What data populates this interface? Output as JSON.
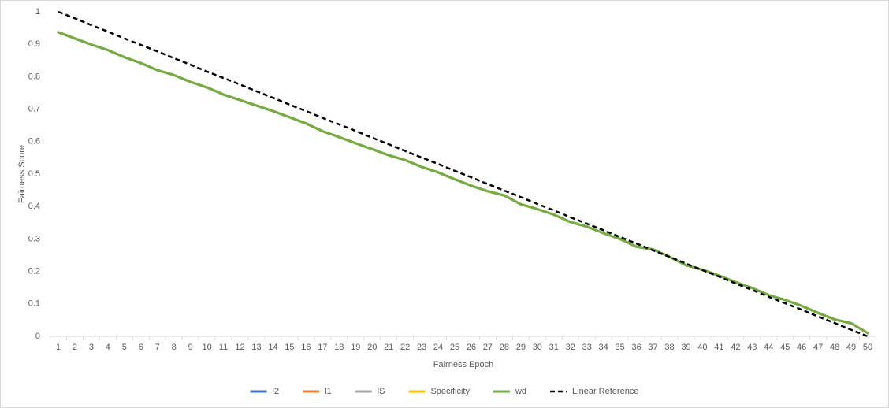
{
  "chart_data": {
    "type": "line",
    "xlabel": "Fairness Epoch",
    "ylabel": "Fairness Score",
    "categories": [
      "1",
      "2",
      "3",
      "4",
      "5",
      "6",
      "7",
      "8",
      "9",
      "10",
      "11",
      "12",
      "13",
      "14",
      "15",
      "16",
      "17",
      "18",
      "19",
      "20",
      "21",
      "22",
      "23",
      "24",
      "25",
      "26",
      "27",
      "28",
      "29",
      "30",
      "31",
      "32",
      "33",
      "34",
      "35",
      "36",
      "37",
      "38",
      "39",
      "40",
      "41",
      "42",
      "43",
      "44",
      "45",
      "46",
      "47",
      "48",
      "49",
      "50"
    ],
    "ylim": [
      0,
      1
    ],
    "yticks": [
      0,
      0.1,
      0.2,
      0.3,
      0.4,
      0.5,
      0.6,
      0.7,
      0.8,
      0.9,
      1
    ],
    "grid": false,
    "legend": "bottom",
    "series": [
      {
        "name": "l2",
        "color": "#4472c4",
        "dashed": false,
        "values": [
          0.937,
          0.918,
          0.899,
          0.882,
          0.86,
          0.842,
          0.82,
          0.805,
          0.784,
          0.767,
          0.745,
          0.728,
          0.711,
          0.694,
          0.675,
          0.656,
          0.632,
          0.614,
          0.595,
          0.577,
          0.558,
          0.543,
          0.522,
          0.505,
          0.484,
          0.464,
          0.447,
          0.434,
          0.407,
          0.392,
          0.375,
          0.352,
          0.338,
          0.318,
          0.3,
          0.276,
          0.268,
          0.245,
          0.219,
          0.205,
          0.187,
          0.167,
          0.149,
          0.127,
          0.112,
          0.094,
          0.072,
          0.052,
          0.04,
          0.01
        ]
      },
      {
        "name": "l1",
        "color": "#ed7d31",
        "dashed": false,
        "values": [
          0.937,
          0.918,
          0.899,
          0.882,
          0.86,
          0.842,
          0.82,
          0.805,
          0.784,
          0.767,
          0.745,
          0.728,
          0.711,
          0.694,
          0.675,
          0.656,
          0.632,
          0.614,
          0.595,
          0.577,
          0.558,
          0.543,
          0.522,
          0.505,
          0.484,
          0.464,
          0.447,
          0.434,
          0.407,
          0.392,
          0.375,
          0.352,
          0.338,
          0.318,
          0.3,
          0.276,
          0.268,
          0.245,
          0.219,
          0.205,
          0.187,
          0.167,
          0.149,
          0.127,
          0.112,
          0.094,
          0.072,
          0.052,
          0.04,
          0.01
        ]
      },
      {
        "name": "lS",
        "color": "#a5a5a5",
        "dashed": false,
        "values": [
          0.937,
          0.918,
          0.899,
          0.882,
          0.86,
          0.842,
          0.82,
          0.805,
          0.784,
          0.767,
          0.745,
          0.728,
          0.711,
          0.694,
          0.675,
          0.656,
          0.632,
          0.614,
          0.595,
          0.577,
          0.558,
          0.543,
          0.522,
          0.505,
          0.484,
          0.464,
          0.447,
          0.434,
          0.407,
          0.392,
          0.375,
          0.352,
          0.338,
          0.318,
          0.3,
          0.276,
          0.268,
          0.245,
          0.219,
          0.205,
          0.187,
          0.167,
          0.149,
          0.127,
          0.112,
          0.094,
          0.072,
          0.052,
          0.04,
          0.01
        ]
      },
      {
        "name": "Specificity",
        "color": "#ffc000",
        "dashed": false,
        "values": [
          0.937,
          0.918,
          0.899,
          0.882,
          0.86,
          0.842,
          0.82,
          0.805,
          0.784,
          0.767,
          0.745,
          0.728,
          0.711,
          0.694,
          0.675,
          0.656,
          0.632,
          0.614,
          0.595,
          0.577,
          0.558,
          0.543,
          0.522,
          0.505,
          0.484,
          0.464,
          0.447,
          0.434,
          0.407,
          0.392,
          0.375,
          0.352,
          0.338,
          0.318,
          0.3,
          0.276,
          0.268,
          0.245,
          0.219,
          0.205,
          0.187,
          0.167,
          0.149,
          0.127,
          0.112,
          0.094,
          0.072,
          0.052,
          0.04,
          0.01
        ]
      },
      {
        "name": "wd",
        "color": "#70ad47",
        "dashed": false,
        "values": [
          0.937,
          0.918,
          0.899,
          0.882,
          0.86,
          0.842,
          0.82,
          0.805,
          0.784,
          0.767,
          0.745,
          0.728,
          0.711,
          0.694,
          0.675,
          0.656,
          0.632,
          0.614,
          0.595,
          0.577,
          0.558,
          0.543,
          0.522,
          0.505,
          0.484,
          0.464,
          0.447,
          0.434,
          0.407,
          0.392,
          0.375,
          0.352,
          0.338,
          0.318,
          0.3,
          0.276,
          0.268,
          0.245,
          0.219,
          0.205,
          0.187,
          0.167,
          0.149,
          0.127,
          0.112,
          0.094,
          0.072,
          0.052,
          0.04,
          0.01
        ]
      },
      {
        "name": "Linear Reference",
        "color": "#000000",
        "dashed": true,
        "values": [
          1,
          0.98,
          0.959,
          0.939,
          0.918,
          0.898,
          0.878,
          0.857,
          0.837,
          0.816,
          0.796,
          0.776,
          0.755,
          0.735,
          0.714,
          0.694,
          0.673,
          0.653,
          0.633,
          0.612,
          0.592,
          0.571,
          0.551,
          0.531,
          0.51,
          0.49,
          0.469,
          0.449,
          0.429,
          0.408,
          0.388,
          0.367,
          0.347,
          0.327,
          0.306,
          0.286,
          0.265,
          0.245,
          0.224,
          0.204,
          0.184,
          0.163,
          0.143,
          0.122,
          0.102,
          0.082,
          0.061,
          0.041,
          0.02,
          0
        ]
      }
    ]
  }
}
